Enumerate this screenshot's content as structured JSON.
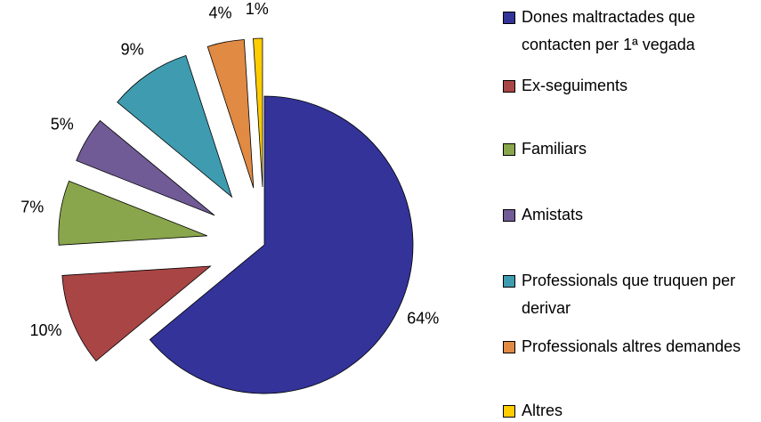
{
  "chart_data": {
    "type": "pie",
    "categories": [
      "Dones maltractades que contacten per 1ª vegada",
      "Ex-seguiments",
      "Familiars",
      "Amistats",
      "Professionals que truquen per derivar",
      "Professionals altres demandes",
      "Altres"
    ],
    "values": [
      64,
      10,
      7,
      5,
      9,
      4,
      1
    ],
    "value_labels": [
      "64%",
      "10%",
      "7%",
      "5%",
      "9%",
      "4%",
      "1%"
    ],
    "colors": [
      "#333399",
      "#aa4545",
      "#8aa64c",
      "#705b96",
      "#3f9cb0",
      "#e08a43",
      "#ffcc00"
    ],
    "legend": "right"
  }
}
